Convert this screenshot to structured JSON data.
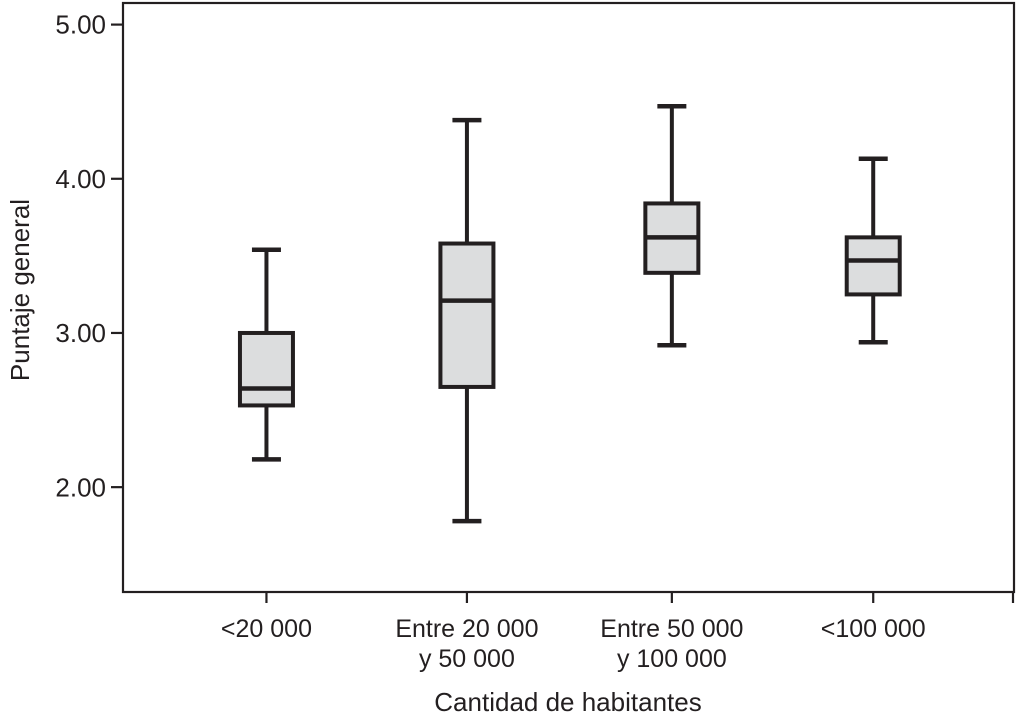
{
  "chart_data": {
    "type": "boxplot",
    "title": "",
    "xlabel": "Cantidad de habitantes",
    "ylabel": "Puntaje general",
    "ylim": [
      1.32,
      5.14
    ],
    "grid": false,
    "legend": false,
    "yticks": [
      {
        "value": 2.0,
        "label": "2.00"
      },
      {
        "value": 3.0,
        "label": "3.00"
      },
      {
        "value": 4.0,
        "label": "4.00"
      },
      {
        "value": 5.0,
        "label": "5.00"
      }
    ],
    "categories": [
      "<20 000",
      "Entre 20 000 y 50 000",
      "Entre 50 000 y 100 000",
      "<100 000"
    ],
    "series": [
      {
        "category_lines": [
          "<20 000"
        ],
        "whisker_low": 2.18,
        "q1": 2.53,
        "median": 2.64,
        "q3": 3.0,
        "whisker_high": 3.54
      },
      {
        "category_lines": [
          "Entre 20 000",
          "y 50 000"
        ],
        "whisker_low": 1.78,
        "q1": 2.65,
        "median": 3.21,
        "q3": 3.58,
        "whisker_high": 4.38
      },
      {
        "category_lines": [
          "Entre 50 000",
          "y 100 000"
        ],
        "whisker_low": 2.92,
        "q1": 3.39,
        "median": 3.62,
        "q3": 3.84,
        "whisker_high": 4.47
      },
      {
        "category_lines": [
          "<100 000"
        ],
        "whisker_low": 2.94,
        "q1": 3.25,
        "median": 3.47,
        "q3": 3.62,
        "whisker_high": 4.13
      }
    ],
    "colors": {
      "line": "#231f20",
      "box_fill": "#dcddde",
      "background": "#ffffff"
    }
  }
}
